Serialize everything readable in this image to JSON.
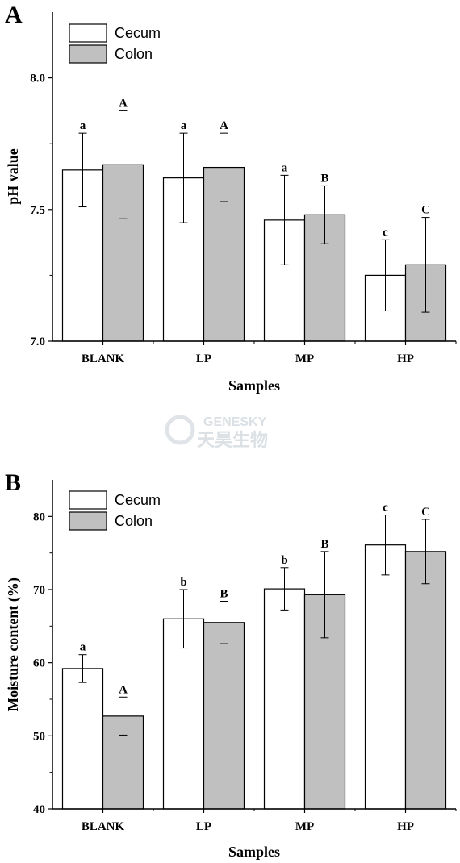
{
  "chart_data": [
    {
      "panel": "A",
      "type": "bar",
      "categories": [
        "BLANK",
        "LP",
        "MP",
        "HP"
      ],
      "series": [
        {
          "name": "Cecum",
          "color": "#ffffff",
          "values": [
            7.65,
            7.62,
            7.46,
            7.25
          ],
          "errors": [
            0.14,
            0.17,
            0.17,
            0.135
          ],
          "letters": [
            "a",
            "a",
            "a",
            "c"
          ]
        },
        {
          "name": "Colon",
          "color": "#c0c0c0",
          "values": [
            7.67,
            7.66,
            7.48,
            7.29
          ],
          "errors": [
            0.205,
            0.13,
            0.11,
            0.18
          ],
          "letters": [
            "A",
            "A",
            "B",
            "C"
          ]
        }
      ],
      "xlabel": "Samples",
      "ylabel": "pH value",
      "ylim": [
        7.0,
        8.25
      ],
      "yticks": [
        "7.0",
        "7.5",
        "8.0"
      ],
      "legend": "top-left",
      "grid": false
    },
    {
      "panel": "B",
      "type": "bar",
      "categories": [
        "BLANK",
        "LP",
        "MP",
        "HP"
      ],
      "series": [
        {
          "name": "Cecum",
          "color": "#ffffff",
          "values": [
            59.2,
            66.0,
            70.1,
            76.1
          ],
          "errors": [
            1.9,
            4.0,
            2.9,
            4.1
          ],
          "letters": [
            "a",
            "b",
            "b",
            "c"
          ]
        },
        {
          "name": "Colon",
          "color": "#c0c0c0",
          "values": [
            52.7,
            65.5,
            69.3,
            75.2
          ],
          "errors": [
            2.6,
            2.9,
            5.9,
            4.4
          ],
          "letters": [
            "A",
            "B",
            "B",
            "C"
          ]
        }
      ],
      "xlabel": "Samples",
      "ylabel": "Moisture content (%)",
      "ylim": [
        40,
        85
      ],
      "yticks": [
        "40",
        "50",
        "60",
        "70",
        "80"
      ],
      "legend": "top-left",
      "grid": false
    }
  ],
  "watermark": {
    "brand": "GENESKY",
    "chinese": "天昊生物"
  }
}
